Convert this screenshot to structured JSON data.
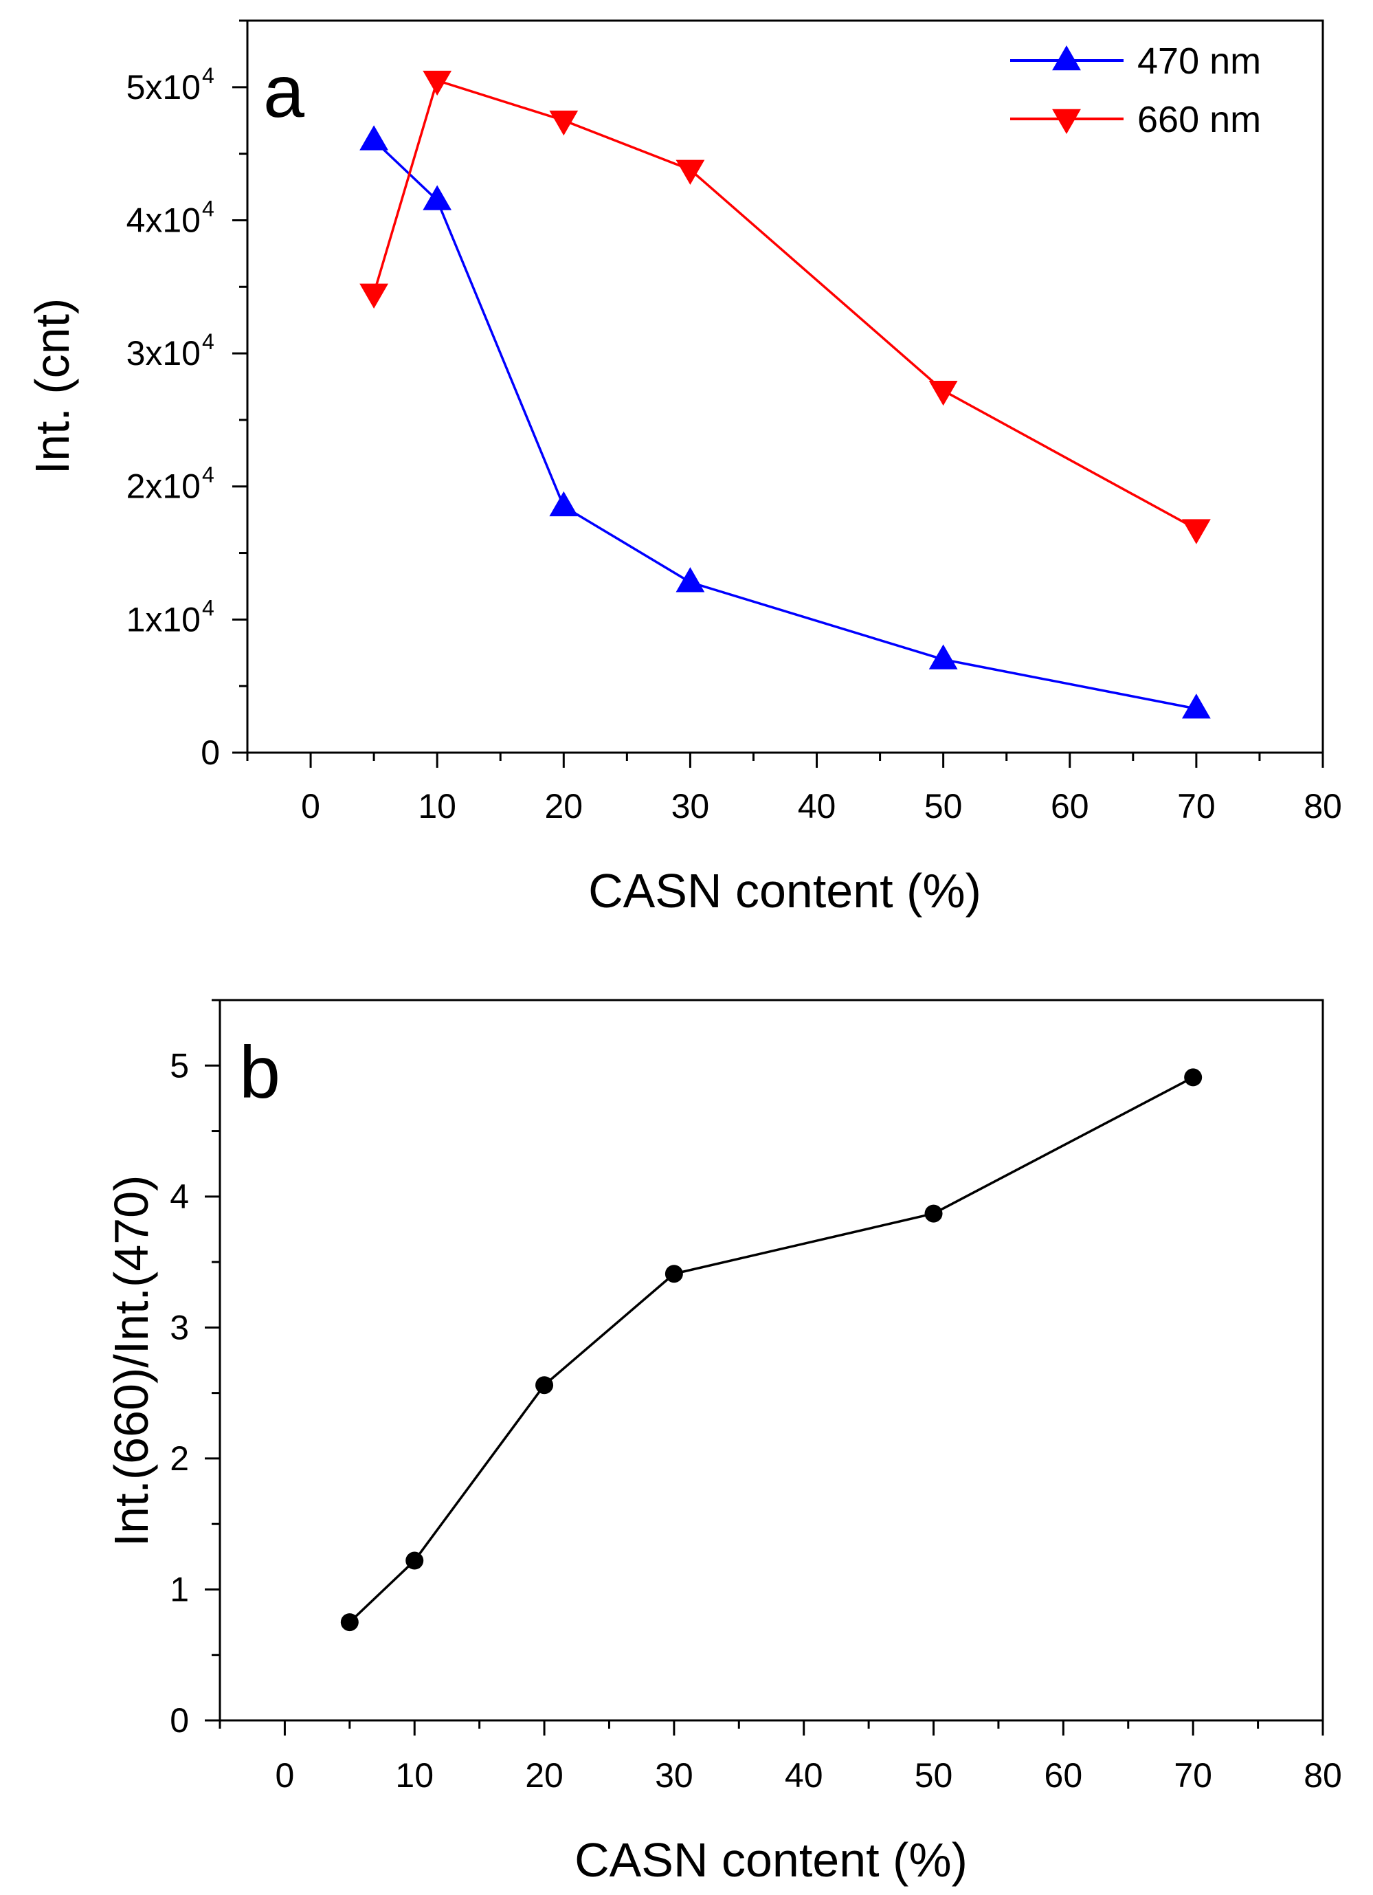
{
  "chart_data": [
    {
      "type": "line",
      "panel_label": "a",
      "xlabel": "CASN content (%)",
      "ylabel": "Int. (cnt)",
      "xlim": [
        -5,
        80
      ],
      "ylim": [
        0,
        55000
      ],
      "x_ticks": [
        0,
        10,
        20,
        30,
        40,
        50,
        60,
        70,
        80
      ],
      "y_ticks": [
        0,
        10000,
        20000,
        30000,
        40000,
        50000
      ],
      "x_tick_labels": [
        "0",
        "10",
        "20",
        "30",
        "40",
        "50",
        "60",
        "70",
        "80"
      ],
      "y_tick_labels": [
        {
          "mantissa": "0",
          "exponent": ""
        },
        {
          "mantissa": "1x10",
          "exponent": "4"
        },
        {
          "mantissa": "2x10",
          "exponent": "4"
        },
        {
          "mantissa": "3x10",
          "exponent": "4"
        },
        {
          "mantissa": "4x10",
          "exponent": "4"
        },
        {
          "mantissa": "5x10",
          "exponent": "4"
        }
      ],
      "legend_position": "top-right",
      "series": [
        {
          "name": "470 nm",
          "color": "#0000ff",
          "marker": "triangle-up",
          "x": [
            5,
            10,
            20,
            30,
            50,
            70
          ],
          "values": [
            46000,
            41500,
            18500,
            12800,
            7000,
            3300
          ]
        },
        {
          "name": "660 nm",
          "color": "#ff0000",
          "marker": "triangle-down",
          "x": [
            5,
            10,
            20,
            30,
            50,
            70
          ],
          "values": [
            34500,
            50500,
            47500,
            43800,
            27200,
            16800
          ]
        }
      ]
    },
    {
      "type": "line",
      "panel_label": "b",
      "xlabel": "CASN content (%)",
      "ylabel": "Int.(660)/Int.(470)",
      "xlim": [
        -5,
        80
      ],
      "ylim": [
        0,
        5.5
      ],
      "x_ticks": [
        0,
        10,
        20,
        30,
        40,
        50,
        60,
        70,
        80
      ],
      "y_ticks": [
        0,
        1,
        2,
        3,
        4,
        5
      ],
      "x_tick_labels": [
        "0",
        "10",
        "20",
        "30",
        "40",
        "50",
        "60",
        "70",
        "80"
      ],
      "y_tick_labels": [
        {
          "mantissa": "0",
          "exponent": ""
        },
        {
          "mantissa": "1",
          "exponent": ""
        },
        {
          "mantissa": "2",
          "exponent": ""
        },
        {
          "mantissa": "3",
          "exponent": ""
        },
        {
          "mantissa": "4",
          "exponent": ""
        },
        {
          "mantissa": "5",
          "exponent": ""
        }
      ],
      "series": [
        {
          "name": "Int.(660)/Int.(470)",
          "color": "#000000",
          "marker": "circle",
          "x": [
            5,
            10,
            20,
            30,
            50,
            70
          ],
          "values": [
            0.75,
            1.22,
            2.56,
            3.41,
            3.87,
            4.91
          ]
        }
      ]
    }
  ]
}
